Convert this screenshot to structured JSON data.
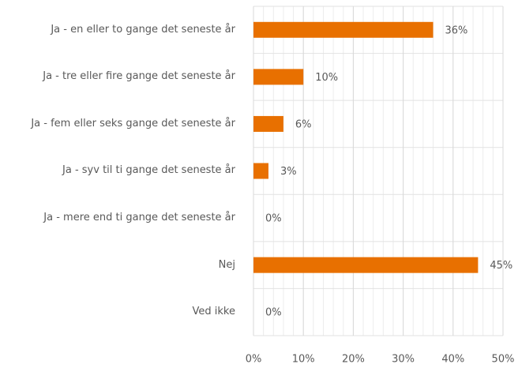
{
  "chart_data": {
    "type": "bar",
    "orientation": "horizontal",
    "categories": [
      "Ja - en eller to gange det seneste år",
      "Ja - tre eller fire gange det seneste år",
      "Ja - fem eller seks gange det seneste år",
      "Ja - syv til ti gange det seneste år",
      "Ja - mere end ti gange det seneste år",
      "Nej",
      "Ved ikke"
    ],
    "values": [
      36,
      10,
      6,
      3,
      0,
      45,
      0
    ],
    "value_labels": [
      "36%",
      "10%",
      "6%",
      "3%",
      "0%",
      "45%",
      "0%"
    ],
    "color": "#e87000",
    "xlim": [
      0,
      50
    ],
    "xticks": [
      {
        "value": 0,
        "label": "0%"
      },
      {
        "value": 10,
        "label": "10%"
      },
      {
        "value": 20,
        "label": "20%"
      },
      {
        "value": 30,
        "label": "30%"
      },
      {
        "value": 40,
        "label": "40%"
      },
      {
        "value": 50,
        "label": "50%"
      }
    ],
    "grid": true
  }
}
